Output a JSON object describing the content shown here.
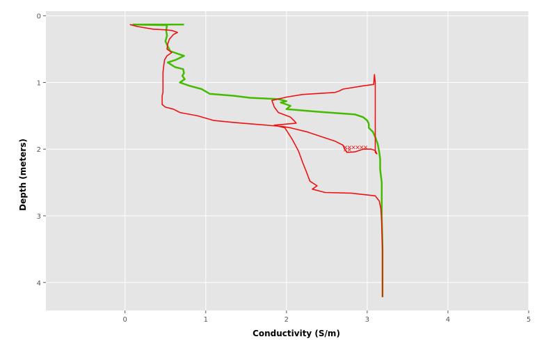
{
  "chart_data": {
    "type": "line",
    "xlabel": "Conductivity (S/m)",
    "ylabel": "Depth (meters)",
    "xlim": [
      -0.98,
      5.0
    ],
    "ylim": [
      4.42,
      -0.07
    ],
    "y_inverted": true,
    "xticks": [
      0,
      1,
      2,
      3,
      4,
      5
    ],
    "yticks": [
      0,
      1,
      2,
      3,
      4
    ],
    "grid": true,
    "background": "#e5e5e5",
    "grid_color": "#ffffff",
    "series": [
      {
        "color": "#44bb00",
        "points": [
          [
            0.73,
            0.13
          ],
          [
            0.1,
            0.13
          ],
          [
            0.52,
            0.14
          ],
          [
            0.51,
            0.22
          ],
          [
            0.52,
            0.3
          ],
          [
            0.5,
            0.38
          ],
          [
            0.53,
            0.46
          ],
          [
            0.56,
            0.53
          ],
          [
            0.73,
            0.6
          ],
          [
            0.63,
            0.66
          ],
          [
            0.53,
            0.7
          ],
          [
            0.62,
            0.77
          ],
          [
            0.72,
            0.8
          ],
          [
            0.73,
            0.86
          ],
          [
            0.71,
            0.9
          ],
          [
            0.74,
            0.95
          ],
          [
            0.68,
            1.0
          ],
          [
            0.8,
            1.05
          ],
          [
            0.95,
            1.1
          ],
          [
            1.05,
            1.17
          ],
          [
            1.35,
            1.2
          ],
          [
            1.55,
            1.23
          ],
          [
            1.9,
            1.25
          ],
          [
            2.0,
            1.28
          ],
          [
            1.93,
            1.3
          ],
          [
            2.05,
            1.35
          ],
          [
            2.0,
            1.4
          ],
          [
            2.4,
            1.44
          ],
          [
            2.85,
            1.48
          ],
          [
            2.95,
            1.52
          ],
          [
            3.0,
            1.57
          ],
          [
            3.02,
            1.62
          ],
          [
            3.02,
            1.68
          ],
          [
            3.07,
            1.74
          ],
          [
            3.1,
            1.82
          ],
          [
            3.13,
            1.92
          ],
          [
            3.15,
            2.05
          ],
          [
            3.16,
            2.15
          ],
          [
            3.16,
            2.3
          ],
          [
            3.18,
            2.5
          ],
          [
            3.18,
            3.0
          ],
          [
            3.19,
            3.5
          ],
          [
            3.19,
            4.0
          ],
          [
            3.19,
            4.22
          ]
        ]
      },
      {
        "color": "#ee1111",
        "points": [
          [
            0.06,
            0.13
          ],
          [
            0.15,
            0.16
          ],
          [
            0.35,
            0.2
          ],
          [
            0.5,
            0.21
          ],
          [
            0.58,
            0.22
          ],
          [
            0.65,
            0.25
          ],
          [
            0.6,
            0.28
          ],
          [
            0.55,
            0.35
          ],
          [
            0.53,
            0.42
          ],
          [
            0.52,
            0.5
          ],
          [
            0.58,
            0.55
          ],
          [
            0.52,
            0.6
          ],
          [
            0.49,
            0.66
          ],
          [
            0.48,
            0.75
          ],
          [
            0.47,
            0.85
          ],
          [
            0.47,
            1.0
          ],
          [
            0.47,
            1.15
          ],
          [
            0.46,
            1.2
          ],
          [
            0.46,
            1.25
          ],
          [
            0.46,
            1.33
          ],
          [
            0.5,
            1.37
          ],
          [
            0.6,
            1.4
          ],
          [
            0.68,
            1.45
          ],
          [
            0.9,
            1.5
          ],
          [
            1.1,
            1.57
          ],
          [
            1.35,
            1.6
          ],
          [
            1.65,
            1.63
          ],
          [
            1.95,
            1.66
          ],
          [
            2.05,
            1.68
          ],
          [
            2.25,
            1.74
          ],
          [
            2.45,
            1.82
          ],
          [
            2.6,
            1.88
          ],
          [
            2.7,
            1.94
          ],
          [
            2.72,
            2.0
          ],
          [
            2.75,
            2.05
          ],
          [
            2.85,
            2.04
          ],
          [
            2.95,
            2.0
          ],
          [
            3.05,
            2.0
          ],
          [
            3.1,
            2.02
          ],
          [
            3.12,
            2.07
          ],
          [
            3.1,
            2.05
          ],
          [
            3.1,
            1.95
          ],
          [
            3.1,
            1.6
          ],
          [
            3.1,
            1.2
          ],
          [
            3.1,
            1.0
          ],
          [
            3.09,
            0.88
          ],
          [
            3.08,
            1.03
          ],
          [
            2.95,
            1.05
          ],
          [
            2.7,
            1.1
          ],
          [
            2.65,
            1.13
          ],
          [
            2.6,
            1.15
          ],
          [
            2.2,
            1.18
          ],
          [
            2.0,
            1.22
          ],
          [
            1.82,
            1.27
          ],
          [
            1.85,
            1.37
          ],
          [
            1.9,
            1.45
          ],
          [
            2.05,
            1.52
          ],
          [
            2.1,
            1.58
          ],
          [
            2.12,
            1.61
          ],
          [
            1.85,
            1.64
          ],
          [
            1.98,
            1.68
          ],
          [
            2.07,
            1.85
          ],
          [
            2.15,
            2.03
          ],
          [
            2.2,
            2.2
          ],
          [
            2.25,
            2.35
          ],
          [
            2.29,
            2.48
          ],
          [
            2.38,
            2.55
          ],
          [
            2.32,
            2.6
          ],
          [
            2.48,
            2.65
          ],
          [
            2.8,
            2.66
          ],
          [
            3.1,
            2.7
          ],
          [
            3.15,
            2.78
          ],
          [
            3.17,
            2.9
          ],
          [
            3.18,
            3.1
          ],
          [
            3.19,
            3.5
          ],
          [
            3.19,
            4.0
          ],
          [
            3.19,
            4.22
          ]
        ]
      }
    ],
    "annotations": [
      {
        "color": "#ee1111",
        "label": "×",
        "points": [
          [
            2.73,
            1.97
          ],
          [
            2.78,
            1.97
          ],
          [
            2.83,
            1.97
          ],
          [
            2.88,
            1.97
          ],
          [
            2.93,
            1.97
          ],
          [
            2.98,
            1.97
          ],
          [
            2.73,
            2.01
          ],
          [
            2.78,
            2.01
          ]
        ]
      }
    ]
  }
}
